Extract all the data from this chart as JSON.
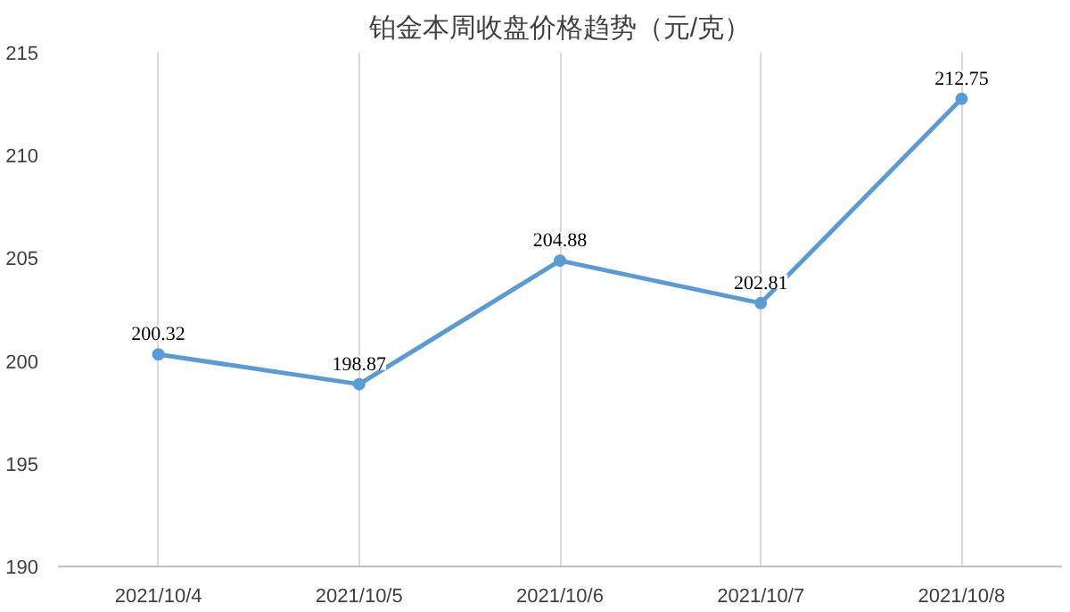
{
  "chart_data": {
    "type": "line",
    "title": "铂金本周收盘价格趋势（元/克）",
    "categories": [
      "2021/10/4",
      "2021/10/5",
      "2021/10/6",
      "2021/10/7",
      "2021/10/8"
    ],
    "series": [
      {
        "color": "#5b9bd5",
        "values": [
          200.32,
          198.87,
          204.88,
          202.81,
          212.75
        ]
      }
    ],
    "ylim": [
      190,
      215
    ],
    "yticks": [
      190,
      195,
      200,
      205,
      210,
      215
    ],
    "grid": "x",
    "marker": "circle",
    "line_style": "solid",
    "data_labels": true
  }
}
